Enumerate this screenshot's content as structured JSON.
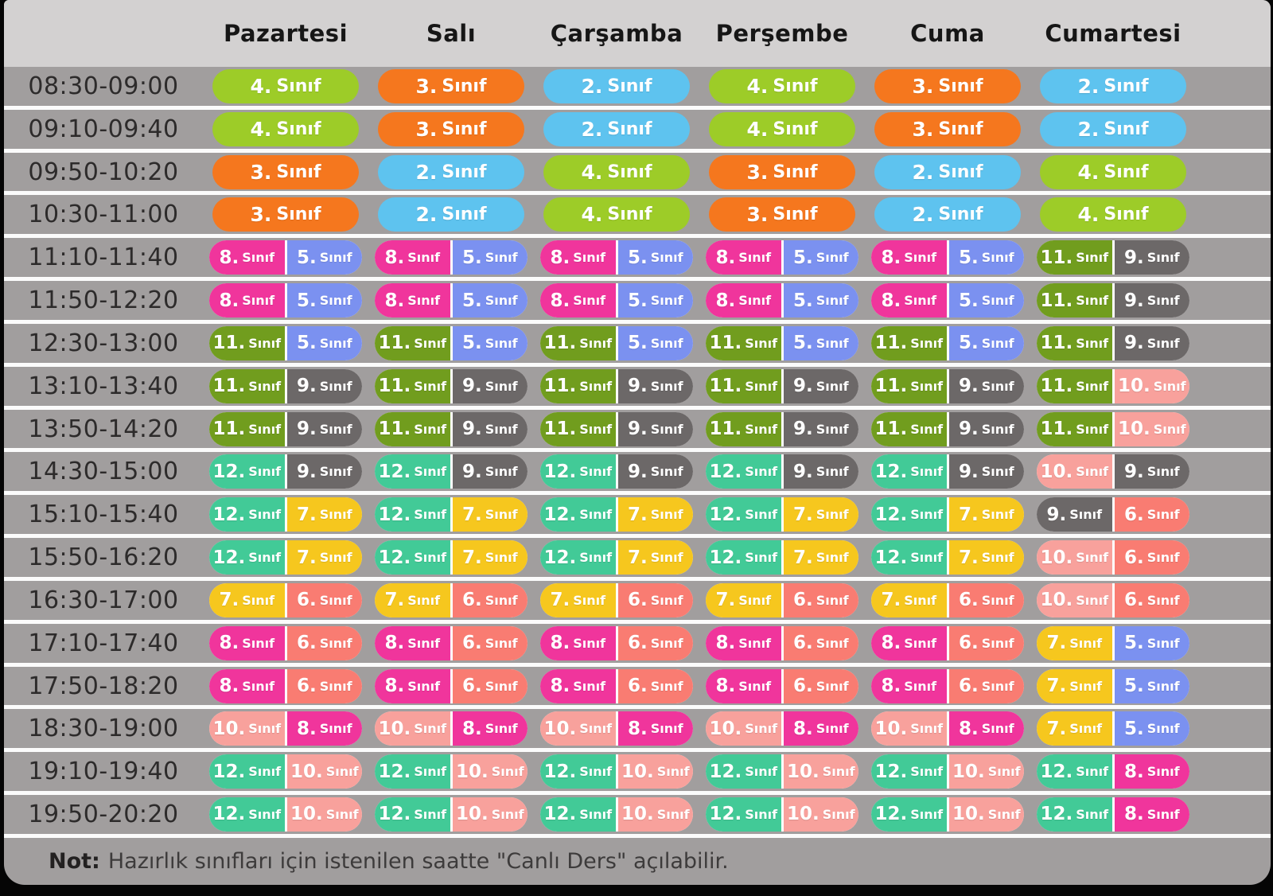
{
  "header": {
    "days": [
      "Pazartesi",
      "Salı",
      "Çarşamba",
      "Perşembe",
      "Cuma",
      "Cumartesi"
    ]
  },
  "schedule": {
    "grade_suffix": "Sınıf",
    "colors": {
      "2": "#5ec3ef",
      "3": "#f5771e",
      "4": "#9dcc28",
      "5": "#7b91f0",
      "6": "#f97c72",
      "7": "#f6c71e",
      "8": "#f0359c",
      "9": "#6c6868",
      "10": "#f8a19c",
      "11": "#719d1e",
      "12": "#42ca97"
    },
    "rows": [
      {
        "time": "08:30-09:00",
        "cells": [
          [
            "4"
          ],
          [
            "3"
          ],
          [
            "2"
          ],
          [
            "4"
          ],
          [
            "3"
          ],
          [
            "2"
          ]
        ]
      },
      {
        "time": "09:10-09:40",
        "cells": [
          [
            "4"
          ],
          [
            "3"
          ],
          [
            "2"
          ],
          [
            "4"
          ],
          [
            "3"
          ],
          [
            "2"
          ]
        ]
      },
      {
        "time": "09:50-10:20",
        "cells": [
          [
            "3"
          ],
          [
            "2"
          ],
          [
            "4"
          ],
          [
            "3"
          ],
          [
            "2"
          ],
          [
            "4"
          ]
        ]
      },
      {
        "time": "10:30-11:00",
        "cells": [
          [
            "3"
          ],
          [
            "2"
          ],
          [
            "4"
          ],
          [
            "3"
          ],
          [
            "2"
          ],
          [
            "4"
          ]
        ]
      },
      {
        "time": "11:10-11:40",
        "cells": [
          [
            "8",
            "5"
          ],
          [
            "8",
            "5"
          ],
          [
            "8",
            "5"
          ],
          [
            "8",
            "5"
          ],
          [
            "8",
            "5"
          ],
          [
            "11",
            "9"
          ]
        ]
      },
      {
        "time": "11:50-12:20",
        "cells": [
          [
            "8",
            "5"
          ],
          [
            "8",
            "5"
          ],
          [
            "8",
            "5"
          ],
          [
            "8",
            "5"
          ],
          [
            "8",
            "5"
          ],
          [
            "11",
            "9"
          ]
        ]
      },
      {
        "time": "12:30-13:00",
        "cells": [
          [
            "11",
            "5"
          ],
          [
            "11",
            "5"
          ],
          [
            "11",
            "5"
          ],
          [
            "11",
            "5"
          ],
          [
            "11",
            "5"
          ],
          [
            "11",
            "9"
          ]
        ]
      },
      {
        "time": "13:10-13:40",
        "cells": [
          [
            "11",
            "9"
          ],
          [
            "11",
            "9"
          ],
          [
            "11",
            "9"
          ],
          [
            "11",
            "9"
          ],
          [
            "11",
            "9"
          ],
          [
            "11",
            "10"
          ]
        ]
      },
      {
        "time": "13:50-14:20",
        "cells": [
          [
            "11",
            "9"
          ],
          [
            "11",
            "9"
          ],
          [
            "11",
            "9"
          ],
          [
            "11",
            "9"
          ],
          [
            "11",
            "9"
          ],
          [
            "11",
            "10"
          ]
        ]
      },
      {
        "time": "14:30-15:00",
        "cells": [
          [
            "12",
            "9"
          ],
          [
            "12",
            "9"
          ],
          [
            "12",
            "9"
          ],
          [
            "12",
            "9"
          ],
          [
            "12",
            "9"
          ],
          [
            "10",
            "9"
          ]
        ]
      },
      {
        "time": "15:10-15:40",
        "cells": [
          [
            "12",
            "7"
          ],
          [
            "12",
            "7"
          ],
          [
            "12",
            "7"
          ],
          [
            "12",
            "7"
          ],
          [
            "12",
            "7"
          ],
          [
            "9",
            "6"
          ]
        ]
      },
      {
        "time": "15:50-16:20",
        "cells": [
          [
            "12",
            "7"
          ],
          [
            "12",
            "7"
          ],
          [
            "12",
            "7"
          ],
          [
            "12",
            "7"
          ],
          [
            "12",
            "7"
          ],
          [
            "10",
            "6"
          ]
        ]
      },
      {
        "time": "16:30-17:00",
        "cells": [
          [
            "7",
            "6"
          ],
          [
            "7",
            "6"
          ],
          [
            "7",
            "6"
          ],
          [
            "7",
            "6"
          ],
          [
            "7",
            "6"
          ],
          [
            "10",
            "6"
          ]
        ]
      },
      {
        "time": "17:10-17:40",
        "cells": [
          [
            "8",
            "6"
          ],
          [
            "8",
            "6"
          ],
          [
            "8",
            "6"
          ],
          [
            "8",
            "6"
          ],
          [
            "8",
            "6"
          ],
          [
            "7",
            "5"
          ]
        ]
      },
      {
        "time": "17:50-18:20",
        "cells": [
          [
            "8",
            "6"
          ],
          [
            "8",
            "6"
          ],
          [
            "8",
            "6"
          ],
          [
            "8",
            "6"
          ],
          [
            "8",
            "6"
          ],
          [
            "7",
            "5"
          ]
        ]
      },
      {
        "time": "18:30-19:00",
        "cells": [
          [
            "10",
            "8"
          ],
          [
            "10",
            "8"
          ],
          [
            "10",
            "8"
          ],
          [
            "10",
            "8"
          ],
          [
            "10",
            "8"
          ],
          [
            "7",
            "5"
          ]
        ]
      },
      {
        "time": "19:10-19:40",
        "cells": [
          [
            "12",
            "10"
          ],
          [
            "12",
            "10"
          ],
          [
            "12",
            "10"
          ],
          [
            "12",
            "10"
          ],
          [
            "12",
            "10"
          ],
          [
            "12",
            "8"
          ]
        ]
      },
      {
        "time": "19:50-20:20",
        "cells": [
          [
            "12",
            "10"
          ],
          [
            "12",
            "10"
          ],
          [
            "12",
            "10"
          ],
          [
            "12",
            "10"
          ],
          [
            "12",
            "10"
          ],
          [
            "12",
            "8"
          ]
        ]
      }
    ]
  },
  "note": {
    "prefix": "Not:",
    "text": "Hazırlık sınıfları için istenilen saatte \"Canlı Ders\" açılabilir."
  },
  "palette": {
    "header_bg": "#d3d1d1",
    "body_bg": "#a19e9e",
    "separator": "#fbfbfb",
    "frame_bg": "#050505"
  }
}
